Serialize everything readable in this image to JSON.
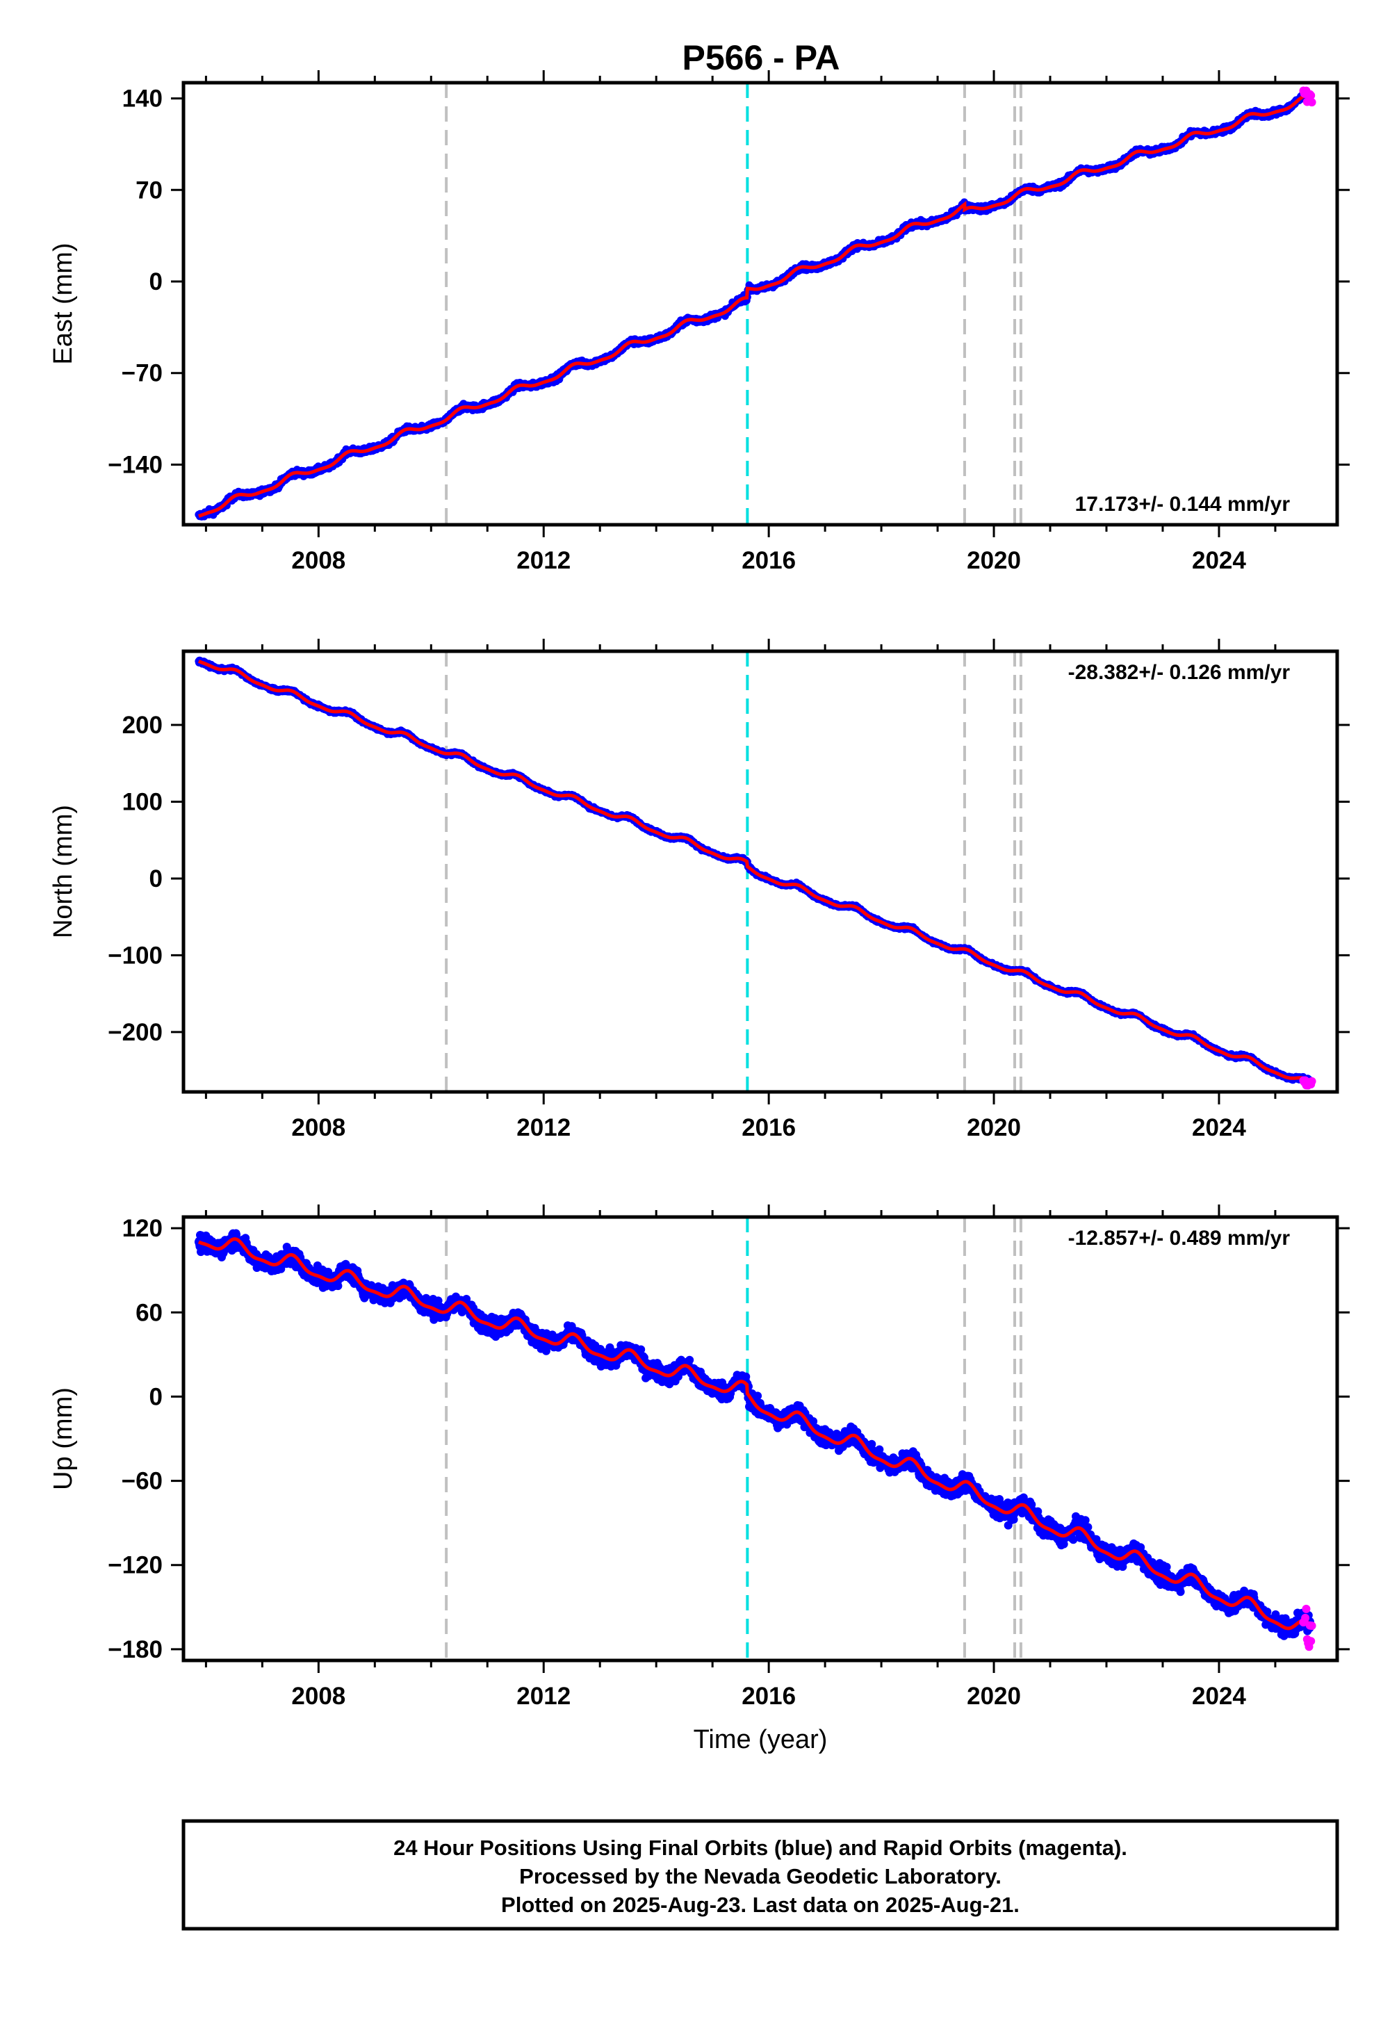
{
  "title": "P566 - PA",
  "xlabel": "Time (year)",
  "colors": {
    "final_points": "#0000ff",
    "rapid_points": "#ff00ff",
    "model_line": "#ff0000",
    "equipment_change": "#c0c0c0",
    "earthquake": "#00e0e0",
    "frame": "#000000"
  },
  "footer": {
    "line1": "24 Hour Positions Using Final Orbits (blue) and Rapid Orbits (magenta).",
    "line2": "Processed by the Nevada Geodetic Laboratory.",
    "line3": "Plotted on 2025-Aug-23. Last data on 2025-Aug-21."
  },
  "chart_data": [
    {
      "type": "scatter",
      "component": "east",
      "ylabel": "East (mm)",
      "rate_label": "17.173+/- 0.144 mm/yr",
      "xlim": [
        2005.6,
        2026.1
      ],
      "ylim": [
        -186,
        152
      ],
      "x_ticks": [
        2008,
        2012,
        2016,
        2020,
        2024
      ],
      "y_ticks": [
        -140,
        -70,
        0,
        70,
        140
      ],
      "y_tick_labels": [
        "−140",
        "−70",
        "0",
        "70",
        "140"
      ],
      "vlines_gray": [
        2010.27,
        2019.48,
        2020.37,
        2020.48
      ],
      "vlines_cyan": [
        2015.62
      ],
      "trend_segments": [
        {
          "x": [
            2005.87,
            2015.62
          ],
          "y": [
            -178,
            -15
          ]
        },
        {
          "x": [
            2015.62,
            2019.48
          ],
          "y": [
            -8,
            56
          ]
        },
        {
          "x": [
            2019.48,
            2025.62
          ],
          "y": [
            52,
            140
          ]
        }
      ],
      "annual_amplitude": 2.5,
      "scatter_noise": 2.2,
      "rapid_x": [
        2025.5,
        2025.65
      ],
      "rapid_y": [
        137,
        146
      ]
    },
    {
      "type": "scatter",
      "component": "north",
      "ylabel": "North (mm)",
      "rate_label": "-28.382+/- 0.126 mm/yr",
      "xlim": [
        2005.6,
        2026.1
      ],
      "ylim": [
        -278,
        296
      ],
      "x_ticks": [
        2008,
        2012,
        2016,
        2020,
        2024
      ],
      "y_ticks": [
        -200,
        -100,
        0,
        100,
        200
      ],
      "y_tick_labels": [
        "−200",
        "−100",
        "0",
        "100",
        "200"
      ],
      "vlines_gray": [
        2010.27,
        2019.48,
        2020.37,
        2020.48
      ],
      "vlines_cyan": [
        2015.62
      ],
      "trend_segments": [
        {
          "x": [
            2005.87,
            2015.62
          ],
          "y": [
            285,
            18
          ]
        },
        {
          "x": [
            2015.62,
            2025.62
          ],
          "y": [
            12,
            -268
          ]
        }
      ],
      "annual_amplitude": 3.5,
      "scatter_noise": 2.0,
      "rapid_x": [
        2025.5,
        2025.65
      ],
      "rapid_y": [
        -270,
        -262
      ]
    },
    {
      "type": "scatter",
      "component": "up",
      "ylabel": "Up (mm)",
      "rate_label": "-12.857+/- 0.489 mm/yr",
      "xlim": [
        2005.6,
        2026.1
      ],
      "ylim": [
        -188,
        128
      ],
      "x_ticks": [
        2008,
        2012,
        2016,
        2020,
        2024
      ],
      "y_ticks": [
        -180,
        -120,
        -60,
        0,
        60,
        120
      ],
      "y_tick_labels": [
        "−180",
        "−120",
        "−60",
        "0",
        "60",
        "120"
      ],
      "vlines_gray": [
        2010.27,
        2019.48,
        2020.37,
        2020.48
      ],
      "vlines_cyan": [
        2015.62
      ],
      "trend_segments": [
        {
          "x": [
            2005.87,
            2015.62
          ],
          "y": [
            113,
            3
          ]
        },
        {
          "x": [
            2015.62,
            2025.62
          ],
          "y": [
            -3,
            -168
          ]
        }
      ],
      "annual_amplitude": 5,
      "scatter_noise": 6,
      "rapid_x": [
        2025.5,
        2025.65
      ],
      "rapid_y": [
        -180,
        -150
      ]
    }
  ]
}
